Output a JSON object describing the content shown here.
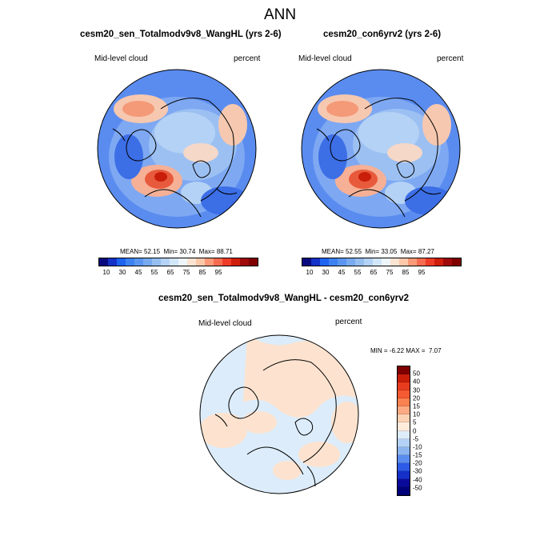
{
  "main_title": "ANN",
  "panels": [
    {
      "title": "cesm20_sen_Totalmodv9v8_WangHL (yrs 2-6)",
      "variable": "Mid-level cloud",
      "units": "percent",
      "stats": {
        "mean_label": "MEAN=",
        "mean": "52.15",
        "min_label": "Min=",
        "min": "30.74",
        "max_label": "Max=",
        "max": "88.71"
      }
    },
    {
      "title": "cesm20_con6yrv2 (yrs 2-6)",
      "variable": "Mid-level cloud",
      "units": "percent",
      "stats": {
        "mean_label": "MEAN=",
        "mean": "52.55",
        "min_label": "Min=",
        "min": "33.05",
        "max_label": "Max=",
        "max": "87.27"
      }
    }
  ],
  "colorbar_top": {
    "labels": [
      "10",
      "30",
      "45",
      "55",
      "65",
      "75",
      "85",
      "95"
    ],
    "colors": [
      "#0a0a80",
      "#1432c8",
      "#1e64f0",
      "#3c82f0",
      "#5a96f0",
      "#78aaf0",
      "#96bef0",
      "#b4d2f5",
      "#d2e6fa",
      "#eef6fc",
      "#fce4d2",
      "#fcc8aa",
      "#fa9a78",
      "#f66c50",
      "#ee3c28",
      "#d01e0c",
      "#a00a0a",
      "#800000"
    ]
  },
  "diff_panel": {
    "title": "cesm20_sen_Totalmodv9v8_WangHL - cesm20_con6yrv2",
    "variable": "Mid-level cloud",
    "units": "percent",
    "stats": {
      "min_label": "MIN =",
      "min": "-6.22",
      "max_label": "MAX =",
      "max": "7.07"
    }
  },
  "colorbar_diff": {
    "labels": [
      "50",
      "40",
      "30",
      "20",
      "15",
      "10",
      "5",
      "0",
      "-5",
      "-10",
      "-15",
      "-20",
      "-30",
      "-40",
      "-50"
    ],
    "colors": [
      "#800000",
      "#c81e0a",
      "#e83c1e",
      "#f65a32",
      "#fa8250",
      "#fcaa82",
      "#fcd2b4",
      "#fdecdc",
      "#deecfa",
      "#b4d2f5",
      "#8cb4f0",
      "#5a8cf0",
      "#2d5ae6",
      "#1430c8",
      "#0a0a9a",
      "#00007a"
    ]
  },
  "maps": {
    "panel_palette": {
      "ocean_low": "#5a8cf0",
      "ocean_mid": "#7ea8f2",
      "land_light": "#b4d2f5",
      "high": "#f6a582",
      "peak": "#d9301e"
    },
    "diff_palette": {
      "background": "#dcecfa",
      "positive": "#fde3cf"
    }
  }
}
